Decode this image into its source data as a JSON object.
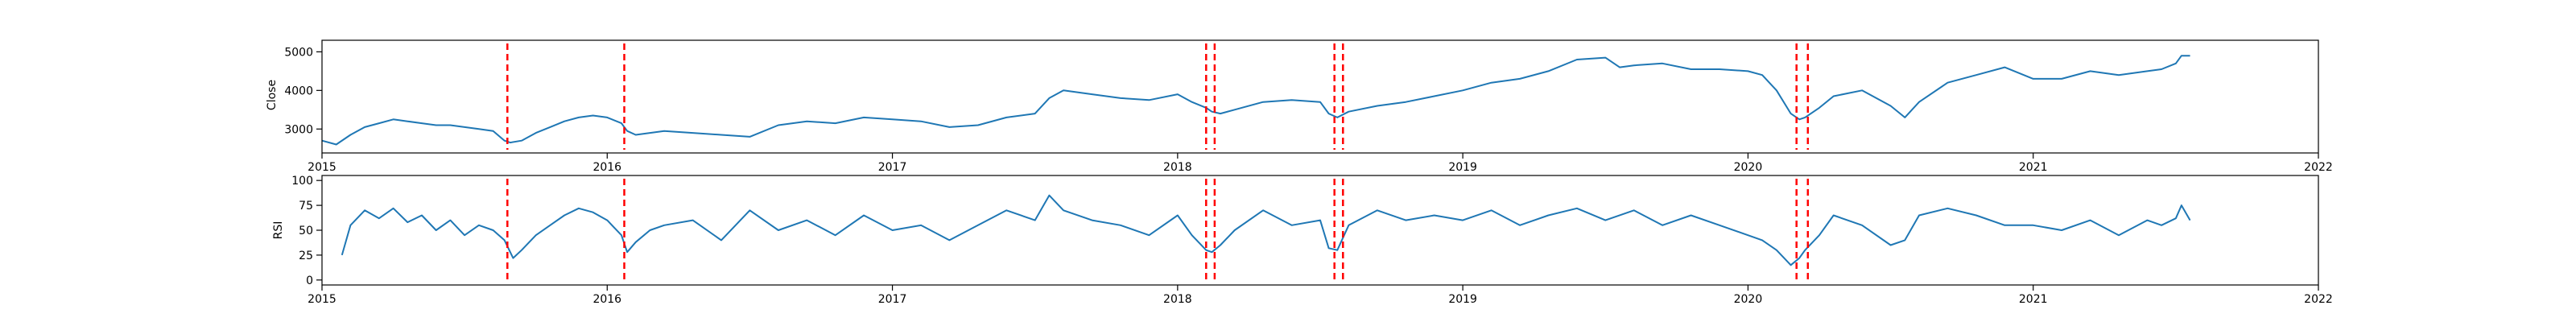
{
  "chart_data": [
    {
      "type": "line",
      "title": "",
      "xlabel": "",
      "ylabel": "Close",
      "xlim": [
        2015.0,
        2022.0
      ],
      "ylim": [
        2380,
        5300
      ],
      "x_ticks": [
        2015,
        2016,
        2017,
        2018,
        2019,
        2020,
        2021,
        2022
      ],
      "x_tick_labels": [
        "2015",
        "2016",
        "2017",
        "2018",
        "2019",
        "2020",
        "2021",
        "2022"
      ],
      "y_ticks": [
        3000,
        4000,
        5000
      ],
      "y_tick_labels": [
        "3000",
        "4000",
        "5000"
      ],
      "grid": false,
      "line_color": "#1f77b4",
      "series": [
        {
          "x": [
            2015.0,
            2015.05,
            2015.1,
            2015.15,
            2015.2,
            2015.25,
            2015.3,
            2015.35,
            2015.4,
            2015.45,
            2015.5,
            2015.55,
            2015.6,
            2015.64,
            2015.66,
            2015.7,
            2015.75,
            2015.8,
            2015.85,
            2015.9,
            2015.95,
            2016.0,
            2016.05,
            2016.07,
            2016.1,
            2016.15,
            2016.2,
            2016.3,
            2016.4,
            2016.5,
            2016.6,
            2016.7,
            2016.8,
            2016.9,
            2017.0,
            2017.1,
            2017.2,
            2017.3,
            2017.4,
            2017.5,
            2017.55,
            2017.6,
            2017.7,
            2017.8,
            2017.9,
            2018.0,
            2018.05,
            2018.1,
            2018.12,
            2018.15,
            2018.2,
            2018.3,
            2018.4,
            2018.5,
            2018.53,
            2018.56,
            2018.6,
            2018.7,
            2018.8,
            2018.9,
            2019.0,
            2019.1,
            2019.2,
            2019.3,
            2019.4,
            2019.5,
            2019.55,
            2019.6,
            2019.7,
            2019.8,
            2019.9,
            2020.0,
            2020.05,
            2020.1,
            2020.15,
            2020.18,
            2020.2,
            2020.25,
            2020.3,
            2020.4,
            2020.5,
            2020.55,
            2020.6,
            2020.7,
            2020.8,
            2020.9,
            2021.0,
            2021.1,
            2021.2,
            2021.3,
            2021.4,
            2021.45,
            2021.5,
            2021.52,
            2021.55
          ],
          "y": [
            2700,
            2600,
            2850,
            3050,
            3150,
            3250,
            3200,
            3150,
            3100,
            3100,
            3050,
            3000,
            2950,
            2700,
            2650,
            2700,
            2900,
            3050,
            3200,
            3300,
            3350,
            3300,
            3150,
            2950,
            2850,
            2900,
            2950,
            2900,
            2850,
            2800,
            3100,
            3200,
            3150,
            3300,
            3250,
            3200,
            3050,
            3100,
            3300,
            3400,
            3800,
            4000,
            3900,
            3800,
            3750,
            3900,
            3700,
            3550,
            3450,
            3400,
            3500,
            3700,
            3750,
            3700,
            3400,
            3300,
            3450,
            3600,
            3700,
            3850,
            4000,
            4200,
            4300,
            4500,
            4800,
            4850,
            4600,
            4650,
            4700,
            4550,
            4550,
            4500,
            4400,
            4000,
            3400,
            3250,
            3300,
            3550,
            3850,
            4000,
            3600,
            3300,
            3700,
            4200,
            4400,
            4600,
            4300,
            4300,
            4500,
            4400,
            4500,
            4550,
            4700,
            4900,
            4900
          ]
        }
      ],
      "vlines": [
        2015.65,
        2016.06,
        2018.1,
        2018.13,
        2018.55,
        2018.58,
        2020.17,
        2020.21
      ],
      "vline_color": "#ff0000"
    },
    {
      "type": "line",
      "title": "",
      "xlabel": "",
      "ylabel": "RSI",
      "xlim": [
        2015.0,
        2022.0
      ],
      "ylim": [
        -5,
        105
      ],
      "x_ticks": [
        2015,
        2016,
        2017,
        2018,
        2019,
        2020,
        2021,
        2022
      ],
      "x_tick_labels": [
        "2015",
        "2016",
        "2017",
        "2018",
        "2019",
        "2020",
        "2021",
        "2022"
      ],
      "y_ticks": [
        0,
        25,
        50,
        75,
        100
      ],
      "y_tick_labels": [
        "0",
        "25",
        "50",
        "75",
        "100"
      ],
      "grid": false,
      "line_color": "#1f77b4",
      "series": [
        {
          "x": [
            2015.07,
            2015.1,
            2015.15,
            2015.2,
            2015.25,
            2015.3,
            2015.35,
            2015.4,
            2015.45,
            2015.5,
            2015.55,
            2015.6,
            2015.64,
            2015.67,
            2015.7,
            2015.75,
            2015.8,
            2015.85,
            2015.9,
            2015.95,
            2016.0,
            2016.05,
            2016.07,
            2016.1,
            2016.15,
            2016.2,
            2016.3,
            2016.4,
            2016.5,
            2016.6,
            2016.7,
            2016.8,
            2016.9,
            2017.0,
            2017.1,
            2017.2,
            2017.3,
            2017.4,
            2017.5,
            2017.55,
            2017.6,
            2017.7,
            2017.8,
            2017.9,
            2018.0,
            2018.05,
            2018.1,
            2018.12,
            2018.15,
            2018.2,
            2018.3,
            2018.4,
            2018.5,
            2018.53,
            2018.56,
            2018.6,
            2018.7,
            2018.8,
            2018.9,
            2019.0,
            2019.1,
            2019.2,
            2019.3,
            2019.4,
            2019.5,
            2019.6,
            2019.7,
            2019.8,
            2019.9,
            2020.0,
            2020.05,
            2020.1,
            2020.15,
            2020.18,
            2020.2,
            2020.25,
            2020.3,
            2020.4,
            2020.5,
            2020.55,
            2020.6,
            2020.7,
            2020.8,
            2020.9,
            2021.0,
            2021.1,
            2021.2,
            2021.3,
            2021.4,
            2021.45,
            2021.5,
            2021.52,
            2021.55
          ],
          "y": [
            25,
            55,
            70,
            62,
            72,
            58,
            65,
            50,
            60,
            45,
            55,
            50,
            40,
            22,
            30,
            45,
            55,
            65,
            72,
            68,
            60,
            45,
            28,
            38,
            50,
            55,
            60,
            40,
            70,
            50,
            60,
            45,
            65,
            50,
            55,
            40,
            55,
            70,
            60,
            85,
            70,
            60,
            55,
            45,
            65,
            45,
            30,
            28,
            35,
            50,
            70,
            55,
            60,
            32,
            30,
            55,
            70,
            60,
            65,
            60,
            70,
            55,
            65,
            72,
            60,
            70,
            55,
            65,
            55,
            45,
            40,
            30,
            15,
            22,
            30,
            45,
            65,
            55,
            35,
            40,
            65,
            72,
            65,
            55,
            55,
            50,
            60,
            45,
            60,
            55,
            62,
            75,
            60
          ]
        }
      ],
      "vlines": [
        2015.65,
        2016.06,
        2018.1,
        2018.13,
        2018.55,
        2018.58,
        2020.17,
        2020.21
      ],
      "vline_color": "#ff0000"
    }
  ]
}
